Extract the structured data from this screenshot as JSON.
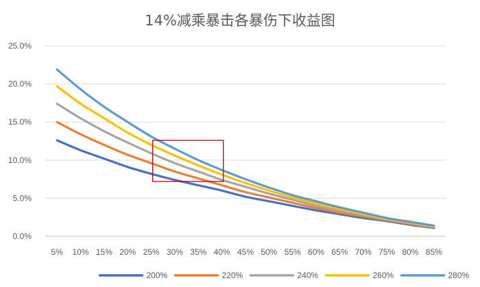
{
  "chart_data": {
    "type": "line",
    "title": "14%减乘暴击各暴伤下收益图",
    "xlabel": "",
    "ylabel": "",
    "categories": [
      "5%",
      "10%",
      "15%",
      "20%",
      "25%",
      "30%",
      "35%",
      "40%",
      "45%",
      "50%",
      "55%",
      "60%",
      "65%",
      "70%",
      "75%",
      "80%",
      "85%"
    ],
    "y_ticks": [
      "0.0%",
      "5.0%",
      "10.0%",
      "15.0%",
      "20.0%",
      "25.0%"
    ],
    "ylim": [
      0,
      25
    ],
    "grid": true,
    "legend_position": "bottom",
    "series": [
      {
        "name": "200%",
        "color": "#4472C4",
        "values": [
          12.6,
          11.3,
          10.2,
          9.1,
          8.2,
          7.4,
          6.7,
          6.0,
          5.2,
          4.6,
          4.0,
          3.4,
          2.9,
          2.4,
          2.0,
          1.5,
          1.1
        ]
      },
      {
        "name": "220%",
        "color": "#ED7D31",
        "values": [
          15.0,
          13.4,
          12.0,
          10.7,
          9.6,
          8.5,
          7.6,
          6.7,
          5.8,
          5.1,
          4.4,
          3.7,
          3.1,
          2.6,
          2.1,
          1.6,
          1.2
        ]
      },
      {
        "name": "240%",
        "color": "#A5A5A5",
        "values": [
          17.4,
          15.5,
          13.8,
          12.3,
          10.9,
          9.6,
          8.5,
          7.4,
          6.5,
          5.6,
          4.8,
          4.0,
          3.4,
          2.8,
          2.2,
          1.7,
          1.2
        ]
      },
      {
        "name": "260%",
        "color": "#FFC000",
        "values": [
          19.7,
          17.4,
          15.5,
          13.6,
          12.0,
          10.6,
          9.3,
          8.1,
          7.0,
          6.0,
          5.1,
          4.3,
          3.6,
          2.9,
          2.3,
          1.8,
          1.3
        ]
      },
      {
        "name": "280%",
        "color": "#5B9BD5",
        "values": [
          21.9,
          19.3,
          17.0,
          15.0,
          13.1,
          11.5,
          10.0,
          8.7,
          7.5,
          6.4,
          5.4,
          4.6,
          3.8,
          3.1,
          2.4,
          1.9,
          1.4
        ]
      }
    ],
    "highlight_box": {
      "x_from": "25%",
      "x_to": "40%",
      "y_from": 7.2,
      "y_to": 12.6,
      "color": "#C00000"
    }
  }
}
